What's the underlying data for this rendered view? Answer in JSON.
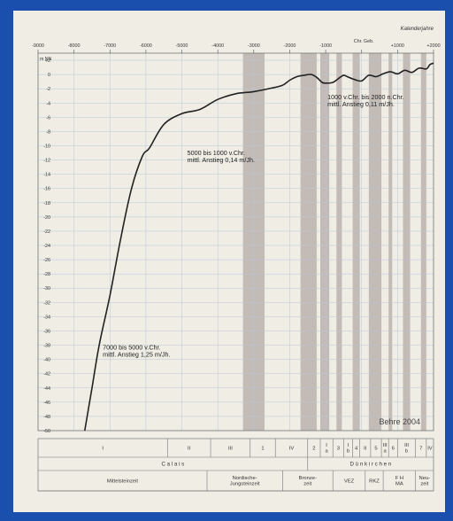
{
  "chart_data": {
    "type": "line",
    "x_axis_title": "Kalenderjahre",
    "y_axis_title": "m NN",
    "x_ticks": [
      "-9000",
      "-8000",
      "-7000",
      "-6000",
      "-5000",
      "-4000",
      "-3000",
      "-2000",
      "-1000",
      "Chr. Geb.",
      "+1000",
      "+2000"
    ],
    "y_ticks": [
      "+2",
      "0",
      "-2",
      "-4",
      "-6",
      "-8",
      "-10",
      "-12",
      "-14",
      "-16",
      "-18",
      "-20",
      "-22",
      "-24",
      "-26",
      "-28",
      "-30",
      "-32",
      "-34",
      "-36",
      "-38",
      "-40",
      "-42",
      "-44",
      "-46",
      "-48",
      "-50"
    ],
    "xlim": [
      -9000,
      2000
    ],
    "ylim": [
      -50,
      3
    ],
    "grid": true,
    "colors": {
      "curve": "#222222",
      "band": "#c3bbb6",
      "grid": "#b9c7dc",
      "text": "#333333"
    },
    "series": [
      {
        "values": [
          [
            -7700,
            -50
          ],
          [
            -7500,
            -44
          ],
          [
            -7300,
            -38
          ],
          [
            -7000,
            -31
          ],
          [
            -6700,
            -23
          ],
          [
            -6400,
            -16
          ],
          [
            -6100,
            -11.5
          ],
          [
            -5900,
            -10.3
          ],
          [
            -5500,
            -7
          ],
          [
            -5000,
            -5.5
          ],
          [
            -4500,
            -4.9
          ],
          [
            -4000,
            -3.5
          ],
          [
            -3500,
            -2.7
          ],
          [
            -3000,
            -2.4
          ],
          [
            -2500,
            -1.9
          ],
          [
            -2200,
            -1.5
          ],
          [
            -2000,
            -0.8
          ],
          [
            -1800,
            -0.3
          ],
          [
            -1600,
            -0.1
          ],
          [
            -1400,
            0
          ],
          [
            -1250,
            -0.4
          ],
          [
            -1100,
            -1.1
          ],
          [
            -1000,
            -1.2
          ],
          [
            -800,
            -1.1
          ],
          [
            -600,
            -0.4
          ],
          [
            -500,
            -0.1
          ],
          [
            -400,
            -0.3
          ],
          [
            -200,
            -0.7
          ],
          [
            0,
            -0.9
          ],
          [
            200,
            -0.1
          ],
          [
            400,
            -0.3
          ],
          [
            600,
            0.1
          ],
          [
            800,
            0.4
          ],
          [
            1000,
            0.1
          ],
          [
            1200,
            0.6
          ],
          [
            1400,
            0.3
          ],
          [
            1600,
            0.9
          ],
          [
            1800,
            0.8
          ],
          [
            1900,
            1.4
          ],
          [
            2000,
            1.6
          ]
        ]
      }
    ],
    "shaded_periods": [
      [
        -3300,
        -2700
      ],
      [
        -1700,
        -1250
      ],
      [
        -1150,
        -900
      ],
      [
        -700,
        -550
      ],
      [
        -250,
        -50
      ],
      [
        200,
        550
      ],
      [
        750,
        850
      ],
      [
        1150,
        1350
      ],
      [
        1650,
        1800
      ]
    ],
    "annotations": [
      {
        "lines": [
          "1000  v.Chr.  bis  2000  n.Chr.",
          "mittl.  Anstieg  0,11  m/Jh."
        ],
        "x": -950,
        "y": -3.5
      },
      {
        "lines": [
          "5000  bis  1000  v.Chr.",
          "mittl.  Anstieg  0,14  m/Jh."
        ],
        "x": -4850,
        "y": -11.3
      },
      {
        "lines": [
          "7000  bis  5000  v.Chr.",
          "mittl.  Anstieg  1,25  m/Jh."
        ],
        "x": -7200,
        "y": -38.6
      }
    ],
    "credit": "Behre  2004",
    "phases": {
      "row1": [
        {
          "label": "I",
          "from": -9000,
          "to": -5400
        },
        {
          "label": "II",
          "from": -5400,
          "to": -4200
        },
        {
          "label": "III",
          "from": -4200,
          "to": -3100
        },
        {
          "label": "1",
          "from": -3100,
          "to": -2400
        },
        {
          "label": "IV",
          "from": -2400,
          "to": -1500
        },
        {
          "label": "2",
          "from": -1500,
          "to": -1150
        },
        {
          "label": "I|a",
          "from": -1150,
          "to": -800
        },
        {
          "label": "3",
          "from": -800,
          "to": -500
        },
        {
          "label": "I|b",
          "from": -500,
          "to": -250
        },
        {
          "label": "4",
          "from": -250,
          "to": -50
        },
        {
          "label": "II",
          "from": -50,
          "to": 250
        },
        {
          "label": "5",
          "from": 250,
          "to": 550
        },
        {
          "label": "III|a",
          "from": 550,
          "to": 750
        },
        {
          "label": "6",
          "from": 750,
          "to": 1000
        },
        {
          "label": "III|b",
          "from": 1000,
          "to": 1500
        },
        {
          "label": "7",
          "from": 1500,
          "to": 1800
        },
        {
          "label": "IV",
          "from": 1800,
          "to": 2000
        }
      ],
      "row2": [
        {
          "label": "C a l a i s",
          "from": -9000,
          "to": -1500
        },
        {
          "label": "D ü n k i r c h e n",
          "from": -1500,
          "to": 2000
        }
      ],
      "row3": [
        {
          "label": "Mittelsteinzeit",
          "from": -9000,
          "to": -4300
        },
        {
          "label": "Nordische-|Jungsteinzeit",
          "from": -4300,
          "to": -2200
        },
        {
          "label": "Bronze-|zeit",
          "from": -2200,
          "to": -800
        },
        {
          "label": "VEZ",
          "from": -800,
          "to": 100
        },
        {
          "label": "RKZ",
          "from": 100,
          "to": 600
        },
        {
          "label": "F   H|MA",
          "from": 600,
          "to": 1500
        },
        {
          "label": "Neu-|zeit",
          "from": 1500,
          "to": 2000
        }
      ]
    }
  }
}
